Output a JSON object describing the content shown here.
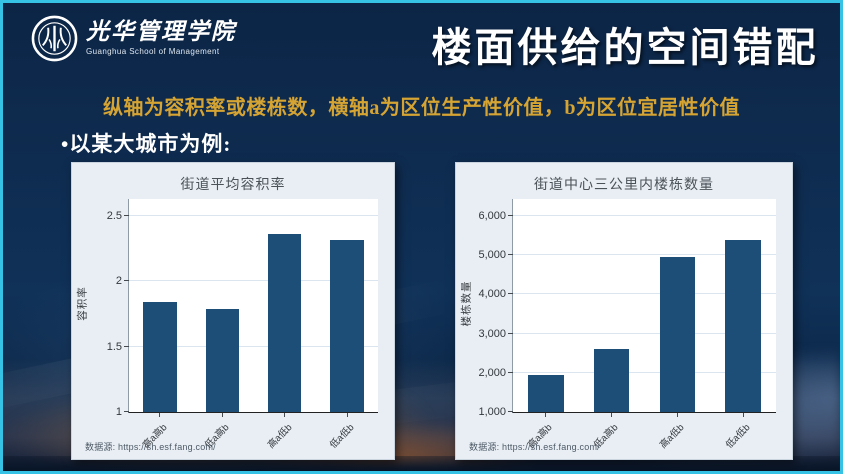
{
  "header": {
    "logo": {
      "seal_icon": "peking-university-seal",
      "name_cn": "光华管理学院",
      "name_en": "Guanghua School of Management"
    },
    "title": "楼面供给的空间错配"
  },
  "subtitle": "纵轴为容积率或楼栋数，横轴a为区位生产性价值，b为区位宜居性价值",
  "bullet": "•以某大城市为例:",
  "colors": {
    "accent_gold": "#d5a433",
    "bar_blue": "#1c4e77",
    "frame_cyan": "#35c2e4",
    "panel_bg": "#e8eef4"
  },
  "chart_data": [
    {
      "type": "bar",
      "title": "街道平均容积率",
      "ylabel": "容积率",
      "xlabel": "",
      "categories": [
        "高a高b",
        "低a高b",
        "高a低b",
        "低a低b"
      ],
      "values": [
        1.84,
        1.79,
        2.36,
        2.32
      ],
      "ylim": [
        1,
        2.5
      ],
      "yticks": [
        {
          "v": 1,
          "label": "1"
        },
        {
          "v": 1.5,
          "label": "1.5"
        },
        {
          "v": 2,
          "label": "2"
        },
        {
          "v": 2.5,
          "label": "2.5"
        }
      ],
      "grid": "horizontal",
      "legend": "none",
      "source": "数据源: https://sh.esf.fang.com/"
    },
    {
      "type": "bar",
      "title": "街道中心三公里内楼栋数量",
      "ylabel": "楼栋数量",
      "xlabel": "",
      "categories": [
        "高a高b",
        "低a高b",
        "高a低b",
        "低a低b"
      ],
      "values": [
        1950,
        2600,
        4950,
        5400
      ],
      "ylim": [
        1000,
        6000
      ],
      "yticks": [
        {
          "v": 1000,
          "label": "1,000"
        },
        {
          "v": 2000,
          "label": "2,000"
        },
        {
          "v": 3000,
          "label": "3,000"
        },
        {
          "v": 4000,
          "label": "4,000"
        },
        {
          "v": 5000,
          "label": "5,000"
        },
        {
          "v": 6000,
          "label": "6,000"
        }
      ],
      "grid": "horizontal",
      "legend": "none",
      "source": "数据源: https://sh.esf.fang.com/"
    }
  ]
}
